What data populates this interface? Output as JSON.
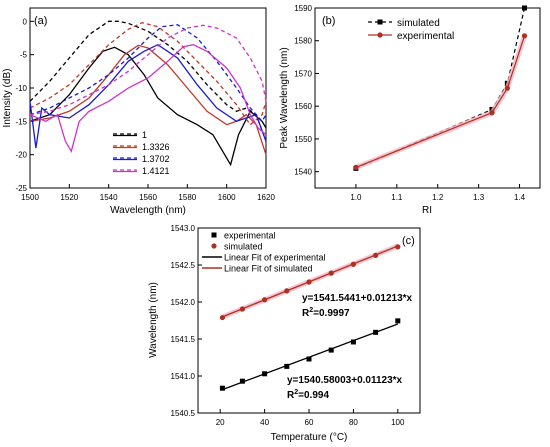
{
  "chart_data": [
    {
      "panel": "(a)",
      "type": "line",
      "xlabel": "Wavelength (nm)",
      "ylabel": "Intensity (dB)",
      "xlim": [
        1500,
        1620
      ],
      "ylim": [
        -25,
        2
      ],
      "xticks": [
        1500,
        1520,
        1540,
        1560,
        1580,
        1600,
        1620
      ],
      "yticks": [
        0,
        -5,
        -10,
        -15,
        -20,
        -25
      ],
      "legend_position": "bottom-center",
      "series": [
        {
          "name": "1",
          "color": "#000000",
          "style": "dashed",
          "x": [
            1500,
            1510,
            1520,
            1530,
            1540,
            1545,
            1550,
            1560,
            1570,
            1580,
            1590,
            1600,
            1605,
            1610,
            1615,
            1620
          ],
          "y": [
            -12,
            -9,
            -5.5,
            -2,
            0,
            0,
            -0.3,
            -1.5,
            -3.5,
            -6,
            -9.5,
            -12.5,
            -13.5,
            -13,
            -14,
            -18
          ]
        },
        {
          "name": "1",
          "color": "#000000",
          "style": "solid",
          "x": [
            1500,
            1510,
            1520,
            1530,
            1537,
            1543,
            1550,
            1558,
            1565,
            1575,
            1585,
            1593,
            1599,
            1602,
            1606,
            1612,
            1618,
            1620
          ],
          "y": [
            -15,
            -14,
            -11,
            -7,
            -4.5,
            -3.9,
            -5,
            -8,
            -11.5,
            -14,
            -15.5,
            -17,
            -20,
            -21.5,
            -17,
            -13.5,
            -15,
            -16
          ]
        },
        {
          "name": "1.3326",
          "color": "#c0392b",
          "style": "dashed",
          "x": [
            1500,
            1510,
            1520,
            1530,
            1540,
            1550,
            1557,
            1565,
            1575,
            1585,
            1595,
            1605,
            1612,
            1618,
            1620
          ],
          "y": [
            -13,
            -11.5,
            -9.5,
            -6.5,
            -3.5,
            -1.2,
            -0.2,
            -0.8,
            -3,
            -6,
            -9,
            -12.5,
            -15.5,
            -14,
            -12
          ]
        },
        {
          "name": "1.3326",
          "color": "#c0392b",
          "style": "solid",
          "x": [
            1500,
            1510,
            1520,
            1530,
            1540,
            1548,
            1555,
            1560,
            1570,
            1580,
            1590,
            1600,
            1605,
            1610,
            1615,
            1620
          ],
          "y": [
            -15,
            -14.5,
            -13.5,
            -11.5,
            -8,
            -5,
            -3.6,
            -4,
            -6.5,
            -10,
            -13.5,
            -15.5,
            -15,
            -14,
            -15.5,
            -20
          ]
        },
        {
          "name": "1.3702",
          "color": "#1a1ad1",
          "style": "dashed",
          "x": [
            1500,
            1510,
            1520,
            1530,
            1540,
            1550,
            1560,
            1567,
            1575,
            1585,
            1595,
            1605,
            1612,
            1618,
            1620
          ],
          "y": [
            -14,
            -13,
            -11.5,
            -10,
            -8,
            -5.5,
            -2.5,
            -0.8,
            -0.5,
            -2.5,
            -6,
            -10,
            -13,
            -15,
            -14
          ]
        },
        {
          "name": "1.3702",
          "color": "#1a1ad1",
          "style": "solid",
          "x": [
            1500,
            1503,
            1506,
            1510,
            1520,
            1530,
            1540,
            1550,
            1558,
            1565,
            1575,
            1585,
            1595,
            1605,
            1610,
            1615,
            1620
          ],
          "y": [
            -12,
            -19,
            -13,
            -14,
            -14.5,
            -12.5,
            -9.5,
            -6,
            -4.5,
            -3.5,
            -5.5,
            -9.5,
            -13,
            -15,
            -14.5,
            -14,
            -18
          ]
        },
        {
          "name": "1.4121",
          "color": "#cc33cc",
          "style": "dashed",
          "x": [
            1500,
            1510,
            1520,
            1530,
            1540,
            1550,
            1560,
            1570,
            1580,
            1588,
            1595,
            1605,
            1612,
            1618,
            1620
          ],
          "y": [
            -14,
            -13.5,
            -12.5,
            -11,
            -9.5,
            -7.5,
            -5,
            -2.5,
            -1,
            -0.6,
            -1,
            -2.5,
            -5.5,
            -9,
            -12
          ]
        },
        {
          "name": "1.4121",
          "color": "#cc33cc",
          "style": "solid",
          "x": [
            1500,
            1508,
            1514,
            1518,
            1521,
            1525,
            1530,
            1540,
            1550,
            1560,
            1570,
            1578,
            1583,
            1590,
            1600,
            1607,
            1612,
            1616,
            1620
          ],
          "y": [
            -14,
            -15,
            -14,
            -18,
            -19.5,
            -15,
            -13.5,
            -12,
            -10,
            -8.5,
            -6,
            -3.8,
            -3.5,
            -4.5,
            -7,
            -10,
            -14,
            -16,
            -17
          ]
        }
      ]
    },
    {
      "panel": "(b)",
      "type": "line",
      "xlabel": "RI",
      "ylabel": "Peak Wavelength (nm)",
      "xlim": [
        0.9,
        1.45
      ],
      "ylim": [
        1535,
        1590
      ],
      "xticks": [
        1.0,
        1.1,
        1.2,
        1.3,
        1.4
      ],
      "yticks": [
        1540,
        1550,
        1560,
        1570,
        1580,
        1590
      ],
      "legend_position": "top-left",
      "series": [
        {
          "name": "simulated",
          "color": "#000000",
          "marker": "square",
          "style": "dashed",
          "x": [
            1.0,
            1.3326,
            1.3702,
            1.4121
          ],
          "y": [
            1541,
            1559,
            1567,
            1590
          ]
        },
        {
          "name": "experimental",
          "color": "#b03020",
          "marker": "circle",
          "style": "solid",
          "x": [
            1.0,
            1.3326,
            1.3702,
            1.4121
          ],
          "y": [
            1541.3,
            1558,
            1565.5,
            1581.5
          ]
        }
      ]
    },
    {
      "panel": "(c)",
      "type": "scatter",
      "xlabel": "Temperature (°C)",
      "ylabel": "Wavelength (nm)",
      "xlim": [
        10,
        110
      ],
      "ylim": [
        1540.5,
        1543
      ],
      "xticks": [
        20,
        40,
        60,
        80,
        100
      ],
      "yticks": [
        1540.5,
        1541.0,
        1541.5,
        1542.0,
        1542.5,
        1543.0
      ],
      "legend_position": "top-left",
      "x": [
        21,
        30,
        40,
        50,
        60,
        70,
        80,
        90,
        100
      ],
      "series": [
        {
          "name": "experimental",
          "color": "#000000",
          "marker": "square",
          "y": [
            1540.835,
            1540.93,
            1541.03,
            1541.13,
            1541.23,
            1541.35,
            1541.46,
            1541.59,
            1541.745
          ]
        },
        {
          "name": "simulated",
          "color": "#b03020",
          "marker": "circle",
          "y": [
            1541.79,
            1541.905,
            1542.03,
            1542.15,
            1542.27,
            1542.39,
            1542.51,
            1542.63,
            1542.745
          ]
        }
      ],
      "fits": [
        {
          "name": "Linear Fit of experimental",
          "color": "#000000",
          "intercept": 1540.58003,
          "slope": 0.01123
        },
        {
          "name": "Linear Fit of simulated",
          "color": "#b03020",
          "intercept": 1541.5441,
          "slope": 0.01213
        }
      ],
      "annotations": [
        {
          "equation": "y=1541.5441+0.01213*x",
          "r2_label": "R",
          "r2_sup": "2",
          "r2_value": "=0.9997"
        },
        {
          "equation": "y=1540.58003+0.01123*x",
          "r2_label": "R",
          "r2_sup": "2",
          "r2_value": "=0.994"
        }
      ]
    }
  ]
}
